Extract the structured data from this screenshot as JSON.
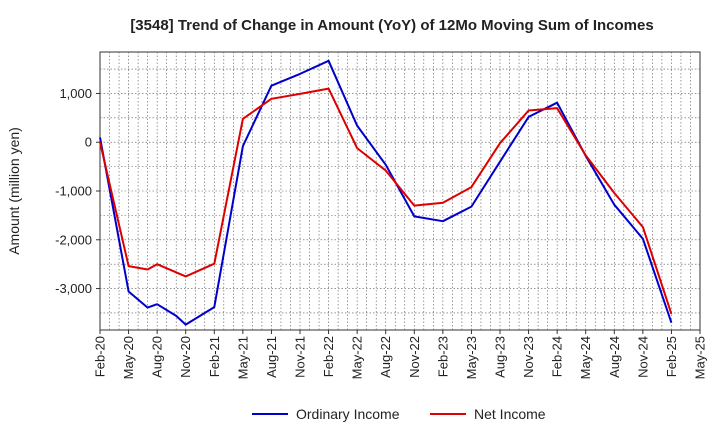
{
  "chart_data": {
    "type": "line",
    "title": "[3548]  Trend of Change in Amount (YoY) of 12Mo Moving Sum of Incomes",
    "xlabel": "",
    "ylabel": "Amount (million yen)",
    "ylim": [
      -3850,
      1850
    ],
    "yticks": [
      1000,
      0,
      -1000,
      -2000,
      -3000
    ],
    "ytick_labels": [
      "1,000",
      "0",
      "-1,000",
      "-2,000",
      "-3,000"
    ],
    "x_tick_labels": [
      "Feb-20",
      "May-20",
      "Aug-20",
      "Nov-20",
      "Feb-21",
      "May-21",
      "Aug-21",
      "Nov-21",
      "Feb-22",
      "May-22",
      "Aug-22",
      "Nov-22",
      "Feb-23",
      "May-23",
      "Aug-23",
      "Nov-23",
      "Feb-24",
      "May-24",
      "Aug-24",
      "Nov-24",
      "Feb-25",
      "May-25"
    ],
    "grid": true,
    "legend_position": "bottom-center",
    "series": [
      {
        "name": "Ordinary Income",
        "color": "#0000cc",
        "points": [
          [
            "Feb-20",
            100
          ],
          [
            "May-20",
            -3060
          ],
          [
            "Jul-20",
            -3390
          ],
          [
            "Aug-20",
            -3320
          ],
          [
            "Oct-20",
            -3560
          ],
          [
            "Nov-20",
            -3740
          ],
          [
            "Feb-21",
            -3380
          ],
          [
            "May-21",
            -80
          ],
          [
            "Aug-21",
            1160
          ],
          [
            "Nov-21",
            1400
          ],
          [
            "Feb-22",
            1670
          ],
          [
            "May-22",
            340
          ],
          [
            "Aug-22",
            -460
          ],
          [
            "Nov-22",
            -1520
          ],
          [
            "Feb-23",
            -1620
          ],
          [
            "May-23",
            -1320
          ],
          [
            "Aug-23",
            -400
          ],
          [
            "Nov-23",
            520
          ],
          [
            "Feb-24",
            810
          ],
          [
            "May-24",
            -280
          ],
          [
            "Aug-24",
            -1280
          ],
          [
            "Nov-24",
            -1980
          ],
          [
            "Feb-25",
            -3700
          ]
        ]
      },
      {
        "name": "Net Income",
        "color": "#dd0000",
        "points": [
          [
            "Feb-20",
            0
          ],
          [
            "May-20",
            -2540
          ],
          [
            "Jul-20",
            -2610
          ],
          [
            "Aug-20",
            -2500
          ],
          [
            "Nov-20",
            -2750
          ],
          [
            "Feb-21",
            -2490
          ],
          [
            "May-21",
            480
          ],
          [
            "Aug-21",
            890
          ],
          [
            "Nov-21",
            990
          ],
          [
            "Feb-22",
            1100
          ],
          [
            "May-22",
            -120
          ],
          [
            "Aug-22",
            -580
          ],
          [
            "Nov-22",
            -1300
          ],
          [
            "Feb-23",
            -1240
          ],
          [
            "May-23",
            -920
          ],
          [
            "Aug-23",
            -20
          ],
          [
            "Nov-23",
            650
          ],
          [
            "Feb-24",
            700
          ],
          [
            "May-24",
            -270
          ],
          [
            "Aug-24",
            -1040
          ],
          [
            "Nov-24",
            -1740
          ],
          [
            "Feb-25",
            -3520
          ]
        ]
      }
    ]
  }
}
